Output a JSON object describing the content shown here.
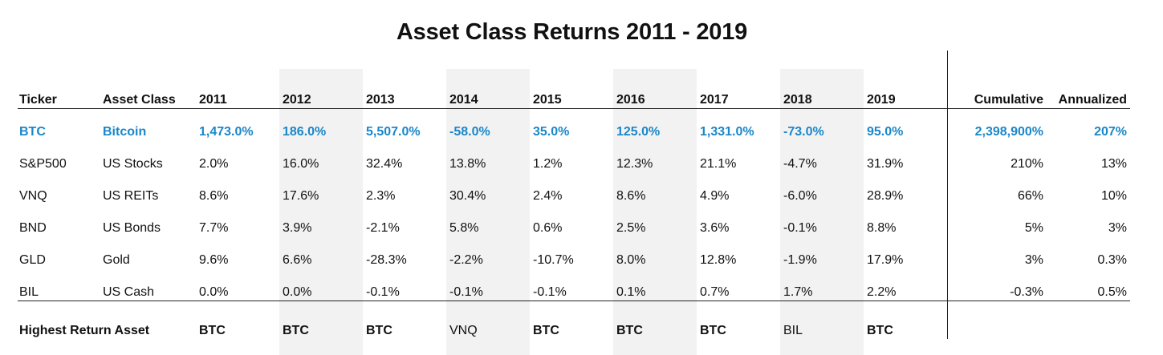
{
  "title": "Asset Class Returns 2011 - 2019",
  "chart_data": {
    "type": "table",
    "title": "Asset Class Returns 2011 - 2019",
    "columns": [
      "Ticker",
      "Asset Class",
      "2011",
      "2012",
      "2013",
      "2014",
      "2015",
      "2016",
      "2017",
      "2018",
      "2019",
      "Cumulative",
      "Annualized"
    ],
    "shaded_year_columns": [
      "2012",
      "2014",
      "2016",
      "2018"
    ],
    "highlight_color": "#1a87c9",
    "shade_color": "#f2f2f2",
    "rows": [
      {
        "ticker": "BTC",
        "asset_class": "Bitcoin",
        "returns": [
          "1,473.0%",
          "186.0%",
          "5,507.0%",
          "-58.0%",
          "35.0%",
          "125.0%",
          "1,331.0%",
          "-73.0%",
          "95.0%"
        ],
        "cumulative": "2,398,900%",
        "annualized": "207%",
        "highlight": true
      },
      {
        "ticker": "S&P500",
        "asset_class": "US Stocks",
        "returns": [
          "2.0%",
          "16.0%",
          "32.4%",
          "13.8%",
          "1.2%",
          "12.3%",
          "21.1%",
          "-4.7%",
          "31.9%"
        ],
        "cumulative": "210%",
        "annualized": "13%",
        "highlight": false
      },
      {
        "ticker": "VNQ",
        "asset_class": "US REITs",
        "returns": [
          "8.6%",
          "17.6%",
          "2.3%",
          "30.4%",
          "2.4%",
          "8.6%",
          "4.9%",
          "-6.0%",
          "28.9%"
        ],
        "cumulative": "66%",
        "annualized": "10%",
        "highlight": false
      },
      {
        "ticker": "BND",
        "asset_class": "US Bonds",
        "returns": [
          "7.7%",
          "3.9%",
          "-2.1%",
          "5.8%",
          "0.6%",
          "2.5%",
          "3.6%",
          "-0.1%",
          "8.8%"
        ],
        "cumulative": "5%",
        "annualized": "3%",
        "highlight": false
      },
      {
        "ticker": "GLD",
        "asset_class": "Gold",
        "returns": [
          "9.6%",
          "6.6%",
          "-28.3%",
          "-2.2%",
          "-10.7%",
          "8.0%",
          "12.8%",
          "-1.9%",
          "17.9%"
        ],
        "cumulative": "3%",
        "annualized": "0.3%",
        "highlight": false
      },
      {
        "ticker": "BIL",
        "asset_class": "US Cash",
        "returns": [
          "0.0%",
          "0.0%",
          "-0.1%",
          "-0.1%",
          "-0.1%",
          "0.1%",
          "0.7%",
          "1.7%",
          "2.2%"
        ],
        "cumulative": "-0.3%",
        "annualized": "0.5%",
        "highlight": false
      }
    ],
    "footer": {
      "label": "Highest Return Asset",
      "values": [
        "BTC",
        "BTC",
        "BTC",
        "VNQ",
        "BTC",
        "BTC",
        "BTC",
        "BIL",
        "BTC"
      ],
      "bold": [
        true,
        true,
        true,
        false,
        true,
        true,
        true,
        false,
        true
      ]
    }
  }
}
